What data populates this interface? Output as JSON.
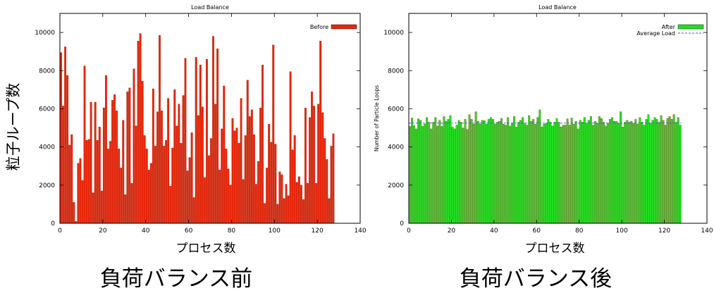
{
  "y_axis_label_jp": "粒子ループ数",
  "x_axis_label_jp": "プロセス数",
  "chart_data": [
    {
      "type": "bar",
      "title": "Load Balance",
      "caption": "負荷バランス前",
      "xlabel": "プロセス数",
      "ylabel": "",
      "xlim": [
        0,
        140
      ],
      "ylim": [
        0,
        11000
      ],
      "xticks": [
        0,
        20,
        40,
        60,
        80,
        100,
        120,
        140
      ],
      "yticks": [
        0,
        2000,
        4000,
        6000,
        8000,
        10000
      ],
      "grid": false,
      "legend_position": "top-right",
      "bar_color": "#e8260a",
      "series": [
        {
          "name": "Before",
          "x_start": 0,
          "values": [
            8950,
            6150,
            9250,
            7750,
            4100,
            4650,
            1100,
            100,
            3150,
            3400,
            2250,
            8250,
            4350,
            4400,
            6350,
            1600,
            6350,
            4350,
            5050,
            1700,
            6050,
            7750,
            3900,
            4300,
            6450,
            6750,
            5900,
            3900,
            2900,
            5400,
            1500,
            6900,
            7100,
            2100,
            8100,
            5100,
            9550,
            9950,
            7450,
            4600,
            3900,
            2800,
            3150,
            7050,
            4050,
            5850,
            9850,
            5900,
            4050,
            4350,
            6550,
            1950,
            3950,
            7000,
            5100,
            6250,
            4200,
            6700,
            8650,
            2750,
            3450,
            4750,
            1350,
            8700,
            5650,
            8300,
            6100,
            2400,
            8600,
            3550,
            4450,
            9800,
            6250,
            9150,
            2800,
            4950,
            7200,
            3900,
            2850,
            2000,
            5500,
            4850,
            5000,
            4200,
            6550,
            2300,
            4600,
            7500,
            5600,
            5950,
            4650,
            2050,
            3250,
            6050,
            8300,
            1050,
            2900,
            5200,
            4250,
            9350,
            4150,
            1000,
            2700,
            2550,
            1300,
            2050,
            1450,
            7950,
            3850,
            4600,
            2150,
            2450,
            2000,
            1250,
            6050,
            2100,
            5550,
            6900,
            6150,
            2100,
            6250,
            9550,
            5800,
            4450,
            3350,
            1300,
            4050,
            4700
          ]
        }
      ]
    },
    {
      "type": "bar",
      "title": "Load Balance",
      "caption": "負荷バランス後",
      "xlabel": "プロセス数",
      "ylabel": "Number of Particle Loops",
      "xlim": [
        0,
        140
      ],
      "ylim": [
        0,
        11000
      ],
      "xticks": [
        0,
        20,
        40,
        60,
        80,
        100,
        120,
        140
      ],
      "yticks": [
        0,
        2000,
        4000,
        6000,
        8000,
        10000
      ],
      "grid": false,
      "legend_position": "top-right",
      "bar_color": "#22dd22",
      "average_load": 5250,
      "average_color": "#4a5fd6",
      "series": [
        {
          "name": "After",
          "x_start": 0,
          "values": [
            5080,
            5520,
            5120,
            4950,
            5480,
            5400,
            5080,
            5200,
            5550,
            5300,
            4950,
            5300,
            5550,
            5100,
            5400,
            5080,
            5600,
            5350,
            5450,
            5650,
            5050,
            4950,
            5150,
            5400,
            5300,
            5000,
            5450,
            4920,
            5700,
            5450,
            5200,
            5850,
            5350,
            5200,
            5400,
            5380,
            5200,
            5450,
            5550,
            5450,
            5200,
            5300,
            5350,
            5500,
            5200,
            5150,
            5550,
            5100,
            5250,
            5600,
            5050,
            5300,
            5400,
            5550,
            5250,
            5150,
            5650,
            5350,
            5450,
            5200,
            5550,
            5950,
            5050,
            5200,
            5250,
            5450,
            5300,
            5100,
            5300,
            5500,
            5300,
            5050,
            5150,
            5150,
            5480,
            5150,
            5520,
            5200,
            5350,
            4950,
            5400,
            5300,
            5550,
            5250,
            5400,
            5600,
            5150,
            5350,
            5250,
            5600,
            5500,
            5300,
            5100,
            5250,
            5450,
            5550,
            5350,
            5350,
            5250,
            5850,
            5050,
            5300,
            5400,
            5300,
            5350,
            5250,
            5450,
            5200,
            5550,
            5300,
            5150,
            5450,
            5700,
            5250,
            5400,
            5550,
            5450,
            5300,
            5650,
            5400,
            5150,
            5500,
            5600,
            5450,
            5700,
            5300,
            5550,
            5150
          ]
        },
        {
          "name": "Average Load"
        }
      ]
    }
  ]
}
